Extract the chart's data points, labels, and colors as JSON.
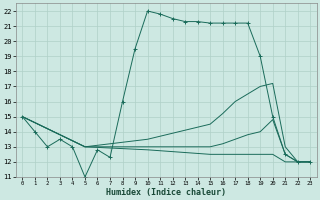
{
  "title": "",
  "xlabel": "Humidex (Indice chaleur)",
  "xlim": [
    -0.5,
    23.5
  ],
  "ylim": [
    11,
    22.5
  ],
  "xticks": [
    0,
    1,
    2,
    3,
    4,
    5,
    6,
    7,
    8,
    9,
    10,
    11,
    12,
    13,
    14,
    15,
    16,
    17,
    18,
    19,
    20,
    21,
    22,
    23
  ],
  "yticks": [
    11,
    12,
    13,
    14,
    15,
    16,
    17,
    18,
    19,
    20,
    21,
    22
  ],
  "bg_color": "#cde8e2",
  "grid_color": "#b0d0c8",
  "line_color": "#1a6b5a",
  "series": [
    {
      "x": [
        0,
        1,
        2,
        3,
        4,
        5,
        6,
        7,
        8,
        9,
        10,
        11,
        12,
        13,
        14,
        15,
        16,
        17,
        18,
        19,
        20,
        21,
        22,
        23
      ],
      "y": [
        15,
        14,
        13,
        13.5,
        13,
        11,
        12.8,
        12.3,
        16,
        19.5,
        22,
        21.8,
        21.5,
        21.3,
        21.3,
        21.2,
        21.2,
        21.2,
        21.2,
        19,
        15,
        12.5,
        12,
        12
      ],
      "marker": "+"
    },
    {
      "x": [
        0,
        5,
        10,
        15,
        16,
        17,
        18,
        19,
        20,
        21,
        22,
        23
      ],
      "y": [
        15,
        13,
        13.5,
        14.5,
        15.2,
        16,
        16.5,
        17,
        17.2,
        13,
        12,
        12
      ],
      "marker": null
    },
    {
      "x": [
        0,
        5,
        10,
        15,
        16,
        17,
        18,
        19,
        20,
        21,
        22,
        23
      ],
      "y": [
        15,
        13,
        13,
        13,
        13.2,
        13.5,
        13.8,
        14,
        14.8,
        12.5,
        12,
        12
      ],
      "marker": null
    },
    {
      "x": [
        0,
        5,
        10,
        15,
        16,
        17,
        18,
        19,
        20,
        21,
        22,
        23
      ],
      "y": [
        15,
        13,
        12.8,
        12.5,
        12.5,
        12.5,
        12.5,
        12.5,
        12.5,
        12,
        12,
        12
      ],
      "marker": null
    }
  ]
}
